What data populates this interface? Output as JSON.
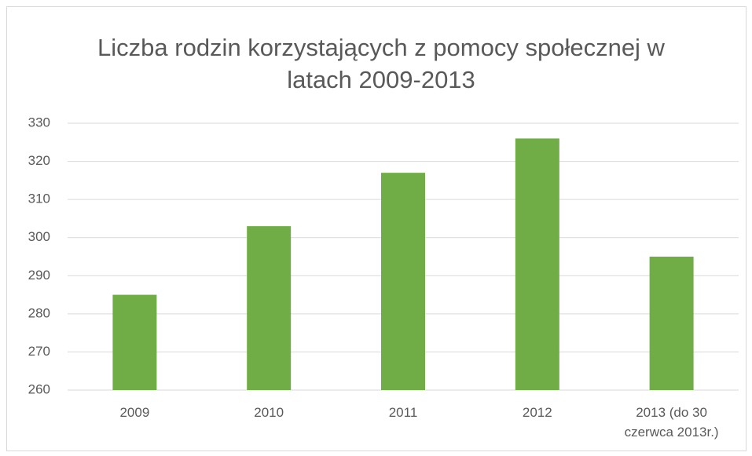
{
  "chart_data": {
    "type": "bar",
    "title": "Liczba rodzin korzystających z pomocy społecznej w latach 2009-2013",
    "categories": [
      "2009",
      "2010",
      "2011",
      "2012",
      "2013 (do 30 czerwca 2013r.)"
    ],
    "values": [
      285,
      303,
      317,
      326,
      295
    ],
    "color": "#70ad47",
    "ylim": [
      260,
      330
    ],
    "yticks": [
      260,
      270,
      280,
      290,
      300,
      310,
      320,
      330
    ],
    "grid": true
  }
}
